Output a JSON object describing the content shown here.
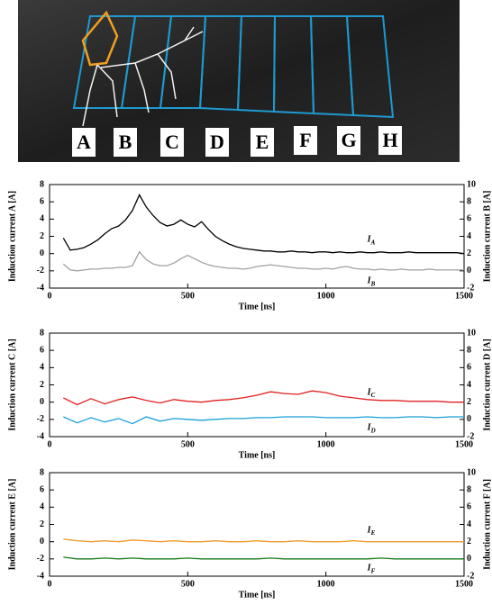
{
  "figure_photo": {
    "labels": [
      "A",
      "B",
      "C",
      "D",
      "E",
      "F",
      "G",
      "H"
    ]
  },
  "chart_data": [
    {
      "type": "line",
      "ylabel": "Induction current A [A]",
      "y2label": "Induction current B [A]",
      "xlabel": "Time [ns]",
      "x": [
        50,
        75,
        100,
        125,
        150,
        175,
        200,
        225,
        250,
        275,
        300,
        325,
        350,
        375,
        400,
        425,
        450,
        475,
        500,
        525,
        550,
        575,
        600,
        625,
        650,
        675,
        700,
        725,
        750,
        775,
        800,
        825,
        850,
        875,
        900,
        925,
        950,
        975,
        1000,
        1025,
        1050,
        1075,
        1100,
        1125,
        1150,
        1175,
        1200,
        1225,
        1250,
        1275,
        1300,
        1325,
        1350,
        1375,
        1400,
        1425,
        1450,
        1475,
        1500
      ],
      "xlim": [
        0,
        1500
      ],
      "xticks": [
        0,
        500,
        1000,
        1500
      ],
      "ylim": [
        -4,
        8
      ],
      "yticks": [
        -4,
        -2,
        0,
        2,
        4,
        6,
        8
      ],
      "y2lim": [
        -2,
        10
      ],
      "y2ticks": [
        -2,
        0,
        2,
        4,
        6,
        8,
        10
      ],
      "series": [
        {
          "name": "IA",
          "color": "#000000",
          "values": [
            1.8,
            0.4,
            0.5,
            0.7,
            1.1,
            1.6,
            2.3,
            2.9,
            3.2,
            3.9,
            5.0,
            6.8,
            5.4,
            4.4,
            3.6,
            3.2,
            3.4,
            3.9,
            3.4,
            3.1,
            3.7,
            2.8,
            2.0,
            1.5,
            1.1,
            0.8,
            0.6,
            0.5,
            0.4,
            0.3,
            0.3,
            0.2,
            0.2,
            0.3,
            0.2,
            0.2,
            0.1,
            0.2,
            0.2,
            0.1,
            0.2,
            0.1,
            0.1,
            0.2,
            0.1,
            0.1,
            0.2,
            0.1,
            0.1,
            0.1,
            0.2,
            0.1,
            0.1,
            0.1,
            0.1,
            0.1,
            0.1,
            0.1,
            0.0
          ]
        },
        {
          "name": "IB",
          "color": "#a0a0a0",
          "axis": "y2",
          "values": [
            0.8,
            0.1,
            0.0,
            0.1,
            0.2,
            0.2,
            0.3,
            0.3,
            0.4,
            0.4,
            0.6,
            2.2,
            1.3,
            0.8,
            0.6,
            0.6,
            0.9,
            1.4,
            1.8,
            1.4,
            1.0,
            0.7,
            0.5,
            0.4,
            0.3,
            0.3,
            0.2,
            0.3,
            0.5,
            0.6,
            0.7,
            0.6,
            0.5,
            0.4,
            0.3,
            0.3,
            0.2,
            0.2,
            0.3,
            0.2,
            0.4,
            0.5,
            0.3,
            0.2,
            0.2,
            0.1,
            0.2,
            0.1,
            0.1,
            0.2,
            0.1,
            0.1,
            0.1,
            0.2,
            0.1,
            0.1,
            0.1,
            0.1,
            0.1
          ]
        }
      ]
    },
    {
      "type": "line",
      "ylabel": "Induction current C [A]",
      "y2label": "Induction current D [A]",
      "xlabel": "Time [ns]",
      "x": [
        50,
        100,
        150,
        200,
        250,
        300,
        350,
        400,
        450,
        500,
        550,
        600,
        650,
        700,
        750,
        800,
        850,
        900,
        950,
        1000,
        1050,
        1100,
        1150,
        1200,
        1250,
        1300,
        1350,
        1400,
        1450,
        1500
      ],
      "xlim": [
        0,
        1500
      ],
      "xticks": [
        0,
        500,
        1000,
        1500
      ],
      "ylim": [
        -4,
        8
      ],
      "yticks": [
        -4,
        -2,
        0,
        2,
        4,
        6,
        8
      ],
      "y2lim": [
        -2,
        10
      ],
      "y2ticks": [
        -2,
        0,
        2,
        4,
        6,
        8,
        10
      ],
      "series": [
        {
          "name": "IC",
          "color": "#e02020",
          "values": [
            0.5,
            -0.3,
            0.4,
            -0.2,
            0.3,
            0.6,
            0.2,
            -0.1,
            0.3,
            0.1,
            0.0,
            0.2,
            0.3,
            0.5,
            0.8,
            1.2,
            1.0,
            0.9,
            1.3,
            1.1,
            0.7,
            0.5,
            0.3,
            0.2,
            0.2,
            0.1,
            0.1,
            0.1,
            0.0,
            0.0
          ]
        },
        {
          "name": "ID",
          "color": "#1aa0d8",
          "axis": "y2",
          "values": [
            0.3,
            -0.4,
            0.2,
            -0.3,
            0.1,
            -0.5,
            0.3,
            -0.2,
            0.1,
            0.0,
            -0.1,
            0.0,
            0.1,
            0.1,
            0.2,
            0.2,
            0.3,
            0.3,
            0.3,
            0.2,
            0.2,
            0.2,
            0.3,
            0.2,
            0.2,
            0.3,
            0.3,
            0.2,
            0.3,
            0.3
          ]
        }
      ]
    },
    {
      "type": "line",
      "ylabel": "Induction current E [A]",
      "y2label": "Induction current F [A]",
      "xlabel": "Time [ns]",
      "x": [
        50,
        100,
        150,
        200,
        250,
        300,
        350,
        400,
        450,
        500,
        550,
        600,
        650,
        700,
        750,
        800,
        850,
        900,
        950,
        1000,
        1050,
        1100,
        1150,
        1200,
        1250,
        1300,
        1350,
        1400,
        1450,
        1500
      ],
      "xlim": [
        0,
        1500
      ],
      "xticks": [
        0,
        500,
        1000,
        1500
      ],
      "ylim": [
        -4,
        8
      ],
      "yticks": [
        -4,
        -2,
        0,
        2,
        4,
        6,
        8
      ],
      "y2lim": [
        -2,
        10
      ],
      "y2ticks": [
        -2,
        0,
        2,
        4,
        6,
        8,
        10
      ],
      "series": [
        {
          "name": "IE",
          "color": "#f39a2a",
          "values": [
            0.3,
            0.1,
            0.0,
            0.1,
            0.0,
            0.2,
            0.1,
            0.0,
            0.1,
            0.0,
            0.0,
            0.1,
            0.0,
            0.0,
            0.1,
            0.0,
            0.0,
            0.1,
            0.0,
            0.0,
            0.0,
            0.1,
            0.0,
            0.0,
            0.0,
            0.0,
            0.0,
            0.0,
            0.0,
            0.0
          ]
        },
        {
          "name": "IF",
          "color": "#1a7a1a",
          "axis": "y2",
          "values": [
            0.2,
            0.0,
            0.0,
            0.1,
            0.0,
            0.1,
            0.0,
            0.0,
            0.0,
            0.1,
            0.0,
            0.0,
            0.0,
            0.0,
            0.0,
            0.1,
            0.0,
            0.0,
            0.0,
            0.0,
            0.0,
            0.0,
            0.0,
            0.1,
            0.0,
            0.0,
            0.0,
            0.0,
            0.0,
            0.0
          ]
        }
      ]
    }
  ]
}
